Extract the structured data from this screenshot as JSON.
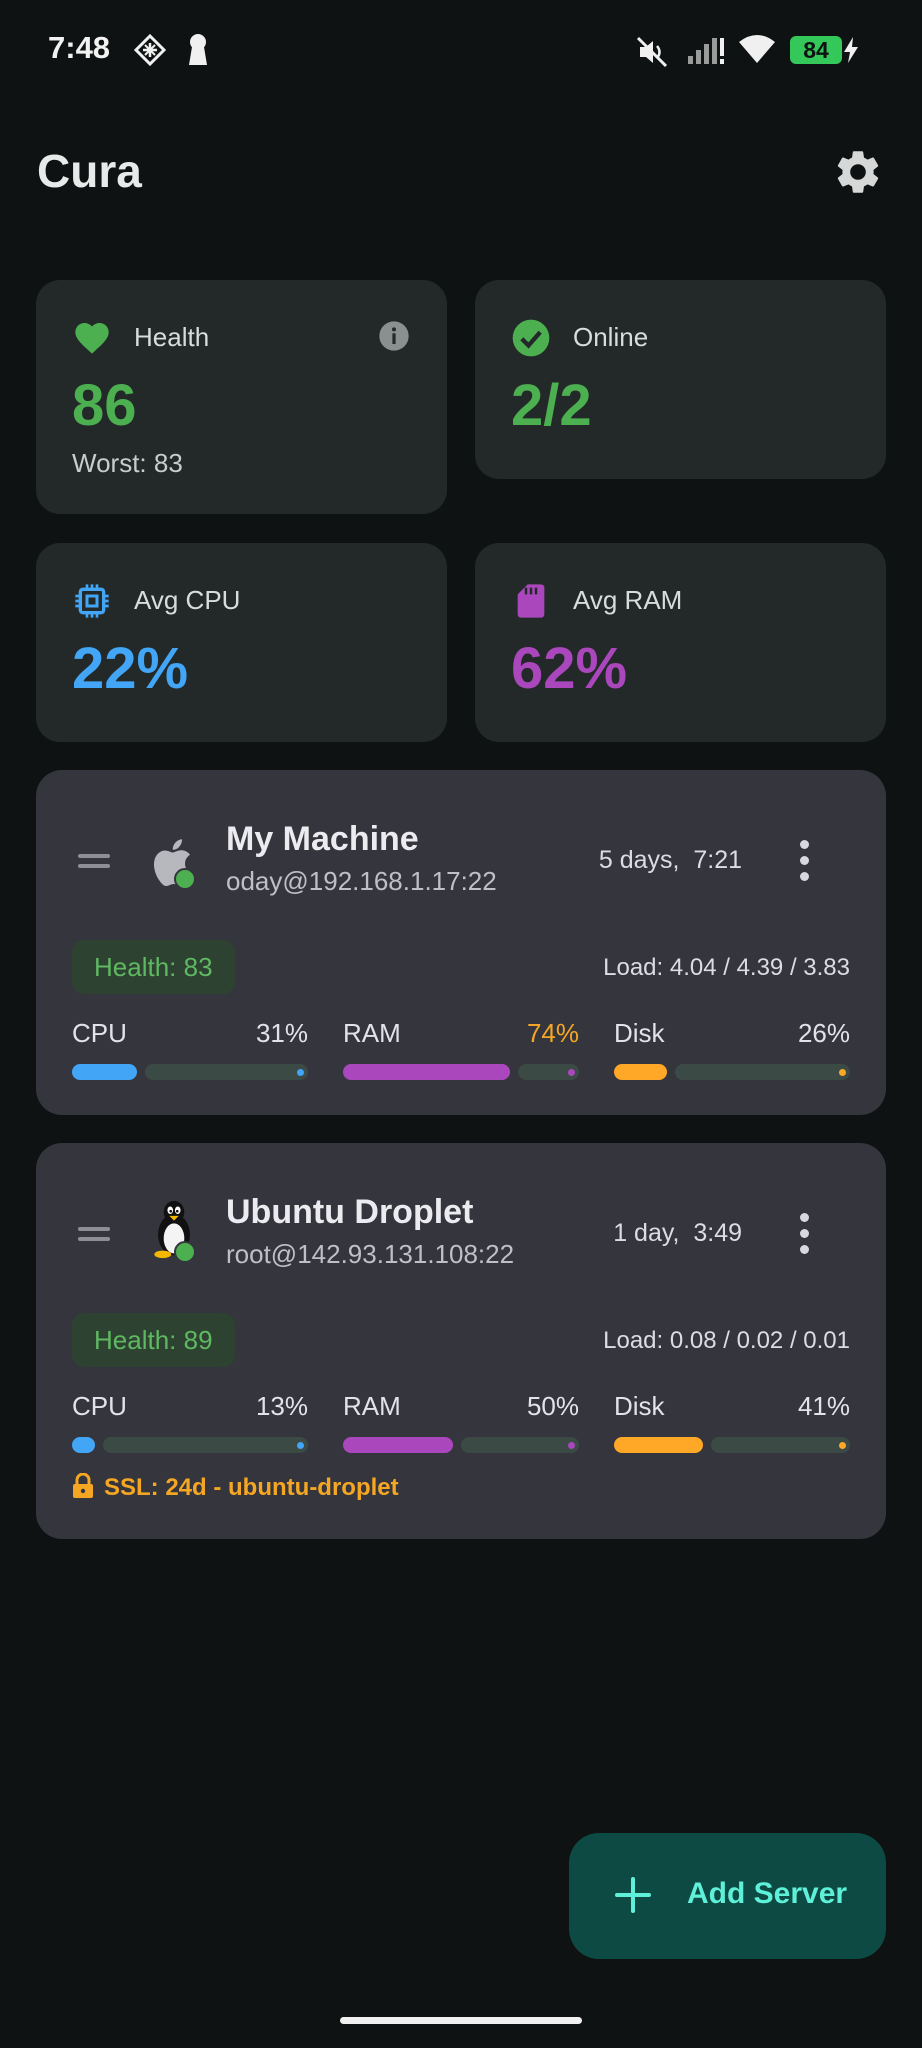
{
  "status_bar": {
    "time": "7:48",
    "battery": "84",
    "icons": [
      "diamond-grid-icon",
      "keyhole-icon",
      "mute-icon",
      "signal-icon",
      "wifi-icon",
      "charging-icon"
    ]
  },
  "header": {
    "title": "Cura",
    "settings_icon": "gear-icon"
  },
  "stats": {
    "health": {
      "label": "Health",
      "value": "86",
      "sub": "Worst: 83",
      "color": "#4caf50",
      "icon": "heart-icon"
    },
    "online": {
      "label": "Online",
      "value": "2/2",
      "color": "#4caf50",
      "icon": "check-circle-icon"
    },
    "cpu": {
      "label": "Avg CPU",
      "value": "22%",
      "color": "#42a5f5",
      "icon": "chip-icon"
    },
    "ram": {
      "label": "Avg RAM",
      "value": "62%",
      "color": "#ab47bc",
      "icon": "memory-card-icon"
    }
  },
  "servers": [
    {
      "name": "My Machine",
      "address": "oday@192.168.1.17:22",
      "uptime": "5 days,  7:21",
      "os_icon": "apple-icon",
      "status": "online",
      "health": "Health: 83",
      "load": "Load: 4.04 / 4.39 / 3.83",
      "metrics": {
        "cpu": {
          "label": "CPU",
          "pct": "31%",
          "value": 0.31,
          "color": "#42a5f5"
        },
        "ram": {
          "label": "RAM",
          "pct": "74%",
          "value": 0.74,
          "color": "#ab47bc",
          "pct_color": "#f5a623"
        },
        "disk": {
          "label": "Disk",
          "pct": "26%",
          "value": 0.26,
          "color": "#ffa726"
        }
      }
    },
    {
      "name": "Ubuntu Droplet",
      "address": "root@142.93.131.108:22",
      "uptime": "1 day,  3:49",
      "os_icon": "linux-tux-icon",
      "status": "online",
      "health": "Health: 89",
      "load": "Load: 0.08 / 0.02 / 0.01",
      "metrics": {
        "cpu": {
          "label": "CPU",
          "pct": "13%",
          "value": 0.13,
          "color": "#42a5f5"
        },
        "ram": {
          "label": "RAM",
          "pct": "50%",
          "value": 0.5,
          "color": "#ab47bc"
        },
        "disk": {
          "label": "Disk",
          "pct": "41%",
          "value": 0.41,
          "color": "#ffa726"
        }
      },
      "ssl": "SSL: 24d - ubuntu-droplet"
    }
  ],
  "fab": {
    "label": "Add Server",
    "icon": "plus-icon"
  }
}
